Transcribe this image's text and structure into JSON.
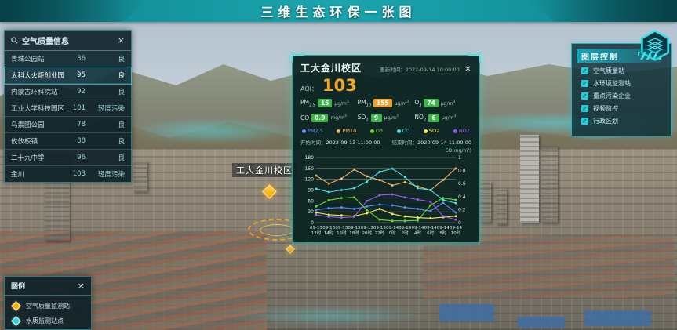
{
  "header": {
    "title": "三维生态环保一张图"
  },
  "station_panel": {
    "title": "空气质量信息",
    "close_label": "×",
    "rows": [
      {
        "name": "青城公园站",
        "aqi": "86",
        "level": "良"
      },
      {
        "name": "太科大火炬创业园",
        "aqi": "95",
        "level": "良"
      },
      {
        "name": "内蒙古环科院站",
        "aqi": "92",
        "level": "良"
      },
      {
        "name": "工业大学科技园区",
        "aqi": "101",
        "level": "轻度污染"
      },
      {
        "name": "乌素图公园",
        "aqi": "78",
        "level": "良"
      },
      {
        "name": "攸攸板镇",
        "aqi": "88",
        "level": "良"
      },
      {
        "name": "二十九中学",
        "aqi": "96",
        "level": "良"
      },
      {
        "name": "金川",
        "aqi": "103",
        "level": "轻度污染"
      }
    ]
  },
  "popup": {
    "title": "工大金川校区",
    "update_label": "更新时间：",
    "update_time": "2022-09-14 10:00:00",
    "close_label": "×",
    "aqi_label": "AQI：",
    "aqi_value": "103",
    "pollutants": [
      {
        "base": "PM",
        "sub": "2.5",
        "value": "15",
        "unit_base": "μg/m",
        "unit_sup": "3",
        "badge_color": "#3cb54a"
      },
      {
        "base": "PM",
        "sub": "10",
        "value": "155",
        "unit_base": "μg/m",
        "unit_sup": "3",
        "badge_color": "#f0a32f"
      },
      {
        "base": "O",
        "sub": "3",
        "value": "74",
        "unit_base": "μg/m",
        "unit_sup": "3",
        "badge_color": "#3cb54a"
      },
      {
        "base": "CO",
        "sub": "",
        "value": "0.9",
        "unit_base": "mg/m",
        "unit_sup": "3",
        "badge_color": "#3cb54a"
      },
      {
        "base": "SO",
        "sub": "2",
        "value": "9",
        "unit_base": "μg/m",
        "unit_sup": "3",
        "badge_color": "#3cb54a"
      },
      {
        "base": "NO",
        "sub": "2",
        "value": "6",
        "unit_base": "μg/m",
        "unit_sup": "3",
        "badge_color": "#3cb54a"
      }
    ],
    "start_label": "开始时间：",
    "start_time": "2022-09-13 11:00:00",
    "end_label": "结束时间：",
    "end_time": "2022-09-14 11:00:00",
    "right_axis_label": "CO(mg/m³)",
    "chart_data": {
      "type": "line",
      "title": "",
      "categories": [
        "09-13 12时",
        "09-13 14时",
        "09-13 16时",
        "09-13 18时",
        "09-13 20时",
        "09-13 22时",
        "09-14 0时",
        "09-14 2时",
        "09-14 4时",
        "09-14 6时",
        "09-14 8时",
        "09-14 10时"
      ],
      "left_axis": {
        "label": "μg/m³",
        "ylim": [
          0,
          180
        ],
        "ticks": [
          0,
          30,
          60,
          90,
          120,
          150,
          180
        ]
      },
      "right_axis": {
        "label": "CO(mg/m³)",
        "ylim": [
          0,
          1
        ],
        "ticks": [
          0,
          0.2,
          0.4,
          0.6,
          0.8,
          1
        ]
      },
      "grid": true,
      "legend_position": "top",
      "series": [
        {
          "name": "PM2.5",
          "color": "#5b8ff9",
          "axis": "left",
          "values": [
            35,
            40,
            42,
            38,
            45,
            50,
            48,
            42,
            38,
            32,
            55,
            28
          ]
        },
        {
          "name": "PM10",
          "color": "#f0b35f",
          "axis": "left",
          "values": [
            130,
            108,
            122,
            147,
            128,
            118,
            103,
            112,
            100,
            90,
            118,
            150
          ]
        },
        {
          "name": "O3",
          "color": "#6fd636",
          "axis": "left",
          "values": [
            45,
            62,
            68,
            70,
            35,
            8,
            5,
            5,
            6,
            48,
            68,
            63
          ]
        },
        {
          "name": "CO",
          "color": "#45e1e8",
          "axis": "right",
          "values": [
            0.52,
            0.47,
            0.5,
            0.53,
            0.63,
            0.78,
            0.83,
            0.7,
            0.53,
            0.5,
            0.35,
            0.3
          ]
        },
        {
          "name": "SO2",
          "color": "#f3ef4a",
          "axis": "left",
          "values": [
            28,
            22,
            20,
            18,
            26,
            38,
            24,
            17,
            14,
            12,
            15,
            18
          ]
        },
        {
          "name": "NO2",
          "color": "#9b5bf0",
          "axis": "left",
          "values": [
            22,
            16,
            14,
            16,
            60,
            76,
            78,
            70,
            64,
            58,
            18,
            8
          ]
        }
      ]
    }
  },
  "map_marker": {
    "label": "工大金川校区",
    "color": "#f7b500"
  },
  "layer_panel": {
    "title": "图层控制",
    "items": [
      {
        "label": "空气质量站",
        "checked": true
      },
      {
        "label": "水环境监测站",
        "checked": true
      },
      {
        "label": "重点污染企业",
        "checked": true
      },
      {
        "label": "视频监控",
        "checked": true
      },
      {
        "label": "行政区划",
        "checked": true
      }
    ]
  },
  "legend_panel": {
    "title": "图例",
    "close_label": "×",
    "items": [
      {
        "label": "空气质量监测站",
        "color": "#f7b500"
      },
      {
        "label": "水质监测站点",
        "color": "#35d6e0"
      }
    ]
  },
  "colors": {
    "accent": "#2ee6d6",
    "aqi_orange": "#f5a623",
    "header_teal": "#1ba5ad"
  }
}
